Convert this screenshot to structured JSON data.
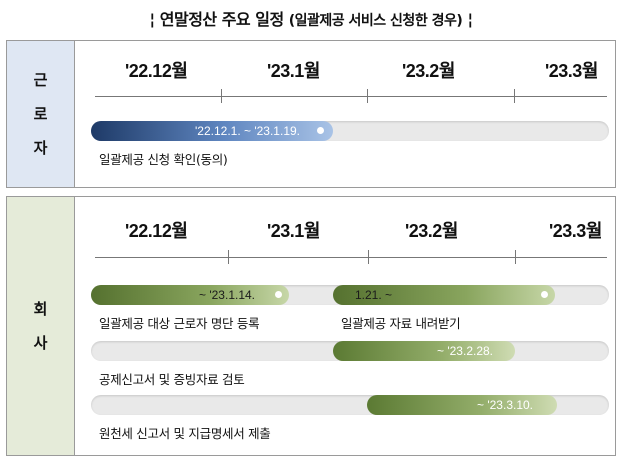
{
  "title": {
    "left_mark": "¦",
    "main": "연말정산 주요 일정",
    "sub": "(일괄제공 서비스 신청한 경우)",
    "right_mark": "¦"
  },
  "months": [
    "'22.12월",
    "'23.1월",
    "'23.2월",
    "'23.3월"
  ],
  "worker": {
    "label_chars": [
      "근",
      "로",
      "자"
    ],
    "tasks": [
      {
        "period_text": "'22.12.1. ~ '23.1.19.",
        "name": "일괄제공 신청 확인(동의)"
      }
    ]
  },
  "company": {
    "label_chars": [
      "회",
      "사"
    ],
    "tasks": [
      {
        "period_text": "~ '23.1.14.",
        "name": "일괄제공 대상 근로자 명단 등록"
      },
      {
        "period_text": "1.21. ~",
        "name": "일괄제공 자료 내려받기"
      },
      {
        "period_text": "~ '23.2.28.",
        "name": "공제신고서 및 증빙자료 검토"
      },
      {
        "period_text": "~ '23.3.10.",
        "name": "원천세 신고서 및 지급명세서 제출"
      }
    ]
  }
}
